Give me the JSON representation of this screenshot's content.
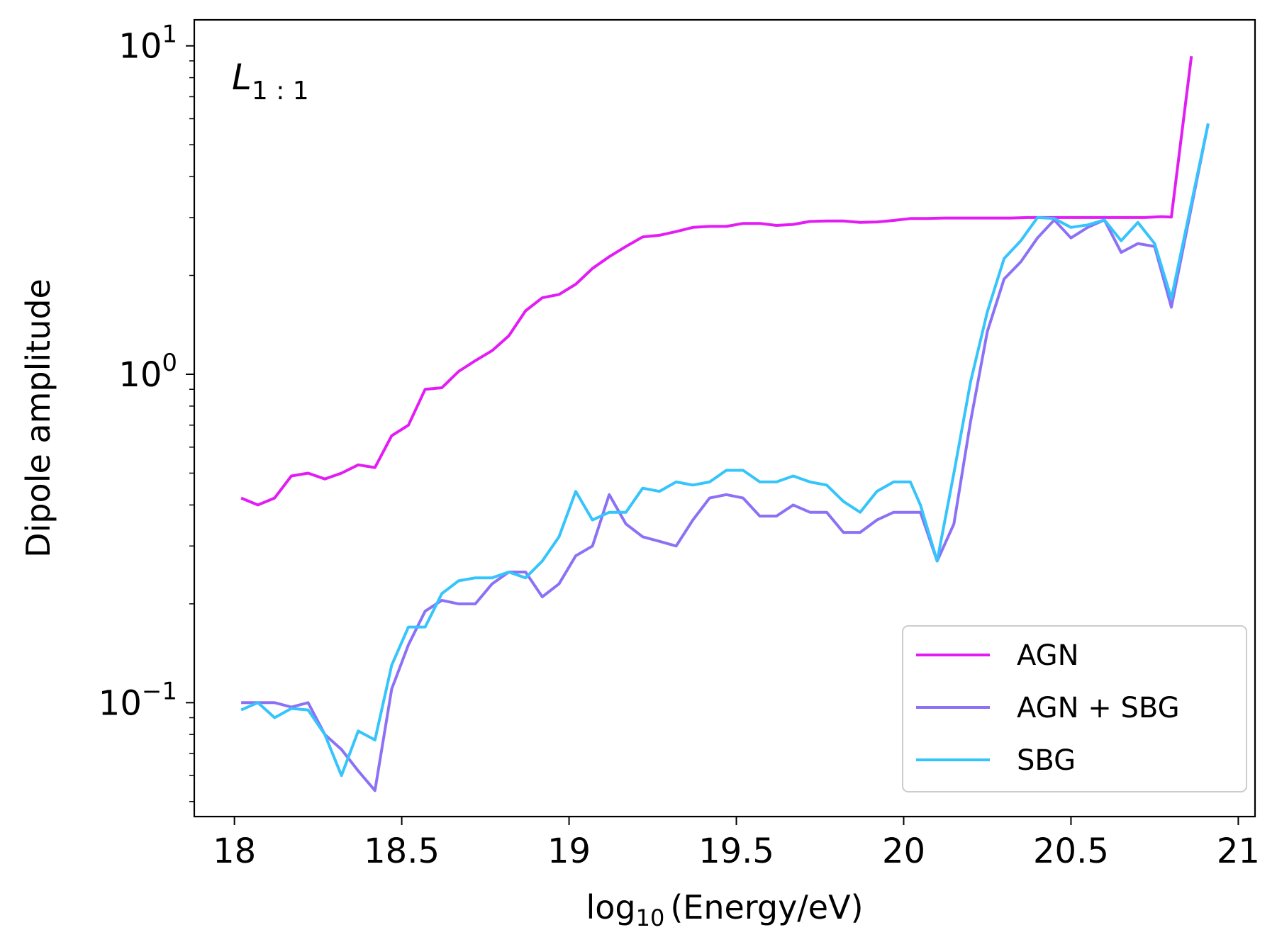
{
  "chart_data": {
    "type": "line",
    "title": "",
    "annotation": {
      "main": "L",
      "subscript": "1 : 1"
    },
    "xlabel": {
      "prefix": "log",
      "subscript": "10",
      "suffix": "(Energy/eV)"
    },
    "ylabel": "Dipole amplitude",
    "xlim": [
      17.88,
      21.05
    ],
    "ylim": [
      0.045,
      12
    ],
    "yscale": "log",
    "xticks": [
      {
        "value": 18,
        "label": "18"
      },
      {
        "value": 18.5,
        "label": "18.5"
      },
      {
        "value": 19,
        "label": "19"
      },
      {
        "value": 19.5,
        "label": "19.5"
      },
      {
        "value": 20,
        "label": "20"
      },
      {
        "value": 20.5,
        "label": "20.5"
      },
      {
        "value": 21,
        "label": "21"
      }
    ],
    "yticks": [
      {
        "value": 0.1,
        "base": "10",
        "exp": "−1"
      },
      {
        "value": 1,
        "base": "10",
        "exp": "0"
      },
      {
        "value": 10,
        "base": "10",
        "exp": "1"
      }
    ],
    "legend_position": "lower-right",
    "series": [
      {
        "name": "AGN",
        "color": "#e31cf5",
        "x": [
          18.02,
          18.07,
          18.12,
          18.17,
          18.22,
          18.27,
          18.32,
          18.37,
          18.42,
          18.47,
          18.52,
          18.57,
          18.62,
          18.67,
          18.72,
          18.77,
          18.82,
          18.87,
          18.92,
          18.97,
          19.02,
          19.07,
          19.12,
          19.17,
          19.22,
          19.27,
          19.32,
          19.37,
          19.42,
          19.47,
          19.52,
          19.57,
          19.62,
          19.67,
          19.72,
          19.77,
          19.82,
          19.87,
          19.92,
          19.97,
          20.02,
          20.07,
          20.12,
          20.17,
          20.22,
          20.27,
          20.32,
          20.37,
          20.42,
          20.47,
          20.52,
          20.57,
          20.62,
          20.67,
          20.72,
          20.77,
          20.8,
          20.86
        ],
        "y": [
          0.42,
          0.4,
          0.42,
          0.49,
          0.5,
          0.48,
          0.5,
          0.53,
          0.52,
          0.65,
          0.7,
          0.9,
          0.91,
          1.02,
          1.1,
          1.18,
          1.31,
          1.56,
          1.71,
          1.75,
          1.88,
          2.1,
          2.28,
          2.45,
          2.62,
          2.65,
          2.72,
          2.8,
          2.82,
          2.82,
          2.88,
          2.88,
          2.84,
          2.86,
          2.92,
          2.93,
          2.93,
          2.9,
          2.91,
          2.94,
          2.98,
          2.98,
          2.99,
          2.99,
          2.99,
          2.99,
          2.99,
          3.0,
          3.0,
          3.0,
          3.0,
          3.0,
          3.0,
          3.0,
          3.0,
          3.02,
          3.01,
          9.3
        ]
      },
      {
        "name": "AGN + SBG",
        "color": "#8c71f6",
        "x": [
          18.02,
          18.07,
          18.12,
          18.17,
          18.22,
          18.27,
          18.32,
          18.37,
          18.42,
          18.47,
          18.52,
          18.57,
          18.62,
          18.67,
          18.72,
          18.77,
          18.82,
          18.87,
          18.92,
          18.97,
          19.02,
          19.07,
          19.12,
          19.17,
          19.22,
          19.27,
          19.32,
          19.37,
          19.42,
          19.47,
          19.52,
          19.57,
          19.62,
          19.67,
          19.72,
          19.77,
          19.82,
          19.87,
          19.92,
          19.97,
          20.02,
          20.05,
          20.1,
          20.15,
          20.2,
          20.25,
          20.3,
          20.35,
          20.4,
          20.45,
          20.5,
          20.55,
          20.6,
          20.65,
          20.7,
          20.75,
          20.8,
          20.91
        ],
        "y": [
          0.1,
          0.1,
          0.1,
          0.097,
          0.1,
          0.08,
          0.072,
          0.062,
          0.054,
          0.11,
          0.15,
          0.19,
          0.205,
          0.2,
          0.2,
          0.23,
          0.25,
          0.25,
          0.21,
          0.23,
          0.28,
          0.3,
          0.43,
          0.35,
          0.32,
          0.31,
          0.3,
          0.36,
          0.42,
          0.43,
          0.42,
          0.37,
          0.37,
          0.4,
          0.38,
          0.38,
          0.33,
          0.33,
          0.36,
          0.38,
          0.38,
          0.38,
          0.27,
          0.35,
          0.72,
          1.35,
          1.95,
          2.2,
          2.6,
          2.95,
          2.6,
          2.8,
          2.95,
          2.35,
          2.5,
          2.45,
          1.6,
          5.8
        ]
      },
      {
        "name": "SBG",
        "color": "#35c4fb",
        "x": [
          18.02,
          18.07,
          18.12,
          18.17,
          18.22,
          18.27,
          18.32,
          18.37,
          18.42,
          18.47,
          18.52,
          18.57,
          18.62,
          18.67,
          18.72,
          18.77,
          18.82,
          18.87,
          18.92,
          18.97,
          19.02,
          19.07,
          19.12,
          19.17,
          19.22,
          19.27,
          19.32,
          19.37,
          19.42,
          19.47,
          19.52,
          19.57,
          19.62,
          19.67,
          19.72,
          19.77,
          19.82,
          19.87,
          19.92,
          19.97,
          20.02,
          20.05,
          20.1,
          20.15,
          20.2,
          20.25,
          20.3,
          20.35,
          20.4,
          20.45,
          20.5,
          20.55,
          20.6,
          20.65,
          20.7,
          20.75,
          20.8,
          20.91
        ],
        "y": [
          0.095,
          0.1,
          0.09,
          0.096,
          0.095,
          0.08,
          0.06,
          0.082,
          0.077,
          0.13,
          0.17,
          0.17,
          0.215,
          0.235,
          0.24,
          0.24,
          0.25,
          0.24,
          0.27,
          0.32,
          0.44,
          0.36,
          0.38,
          0.38,
          0.45,
          0.44,
          0.47,
          0.46,
          0.47,
          0.51,
          0.51,
          0.47,
          0.47,
          0.49,
          0.47,
          0.46,
          0.41,
          0.38,
          0.44,
          0.47,
          0.47,
          0.4,
          0.27,
          0.5,
          0.95,
          1.55,
          2.25,
          2.55,
          3.0,
          2.98,
          2.8,
          2.85,
          2.95,
          2.55,
          2.9,
          2.5,
          1.7,
          5.8
        ]
      }
    ]
  }
}
